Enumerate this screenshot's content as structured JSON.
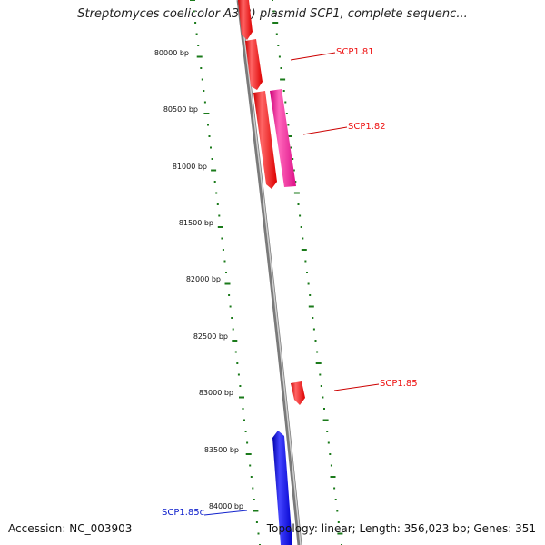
{
  "title": "Streptomyces coelicolor A3(2) plasmid SCP1, complete sequenc...",
  "footer": {
    "accession": "Accession: NC_003903",
    "topology": "Topology: linear; Length: 356,023 bp; Genes: 351"
  },
  "ruler": [
    "80000 bp",
    "80500 bp",
    "81000 bp",
    "81500 bp",
    "82000 bp",
    "82500 bp",
    "83000 bp",
    "83500 bp",
    "84000 bp"
  ],
  "genes": [
    {
      "label": "SCP1.81",
      "color": "#ee1111"
    },
    {
      "label": "SCP1.82",
      "color": "#ee1111"
    },
    {
      "label": "SCP1.85",
      "color": "#ee1111"
    },
    {
      "label": "SCP1.85c",
      "color": "#1122cc"
    }
  ],
  "colors": {
    "forward_gene": "#ff1a1a",
    "forward_gene_alt": "#ee1199",
    "reverse_gene": "#1111ee",
    "backbone": "#888888",
    "tick": "#1a7a1a"
  }
}
